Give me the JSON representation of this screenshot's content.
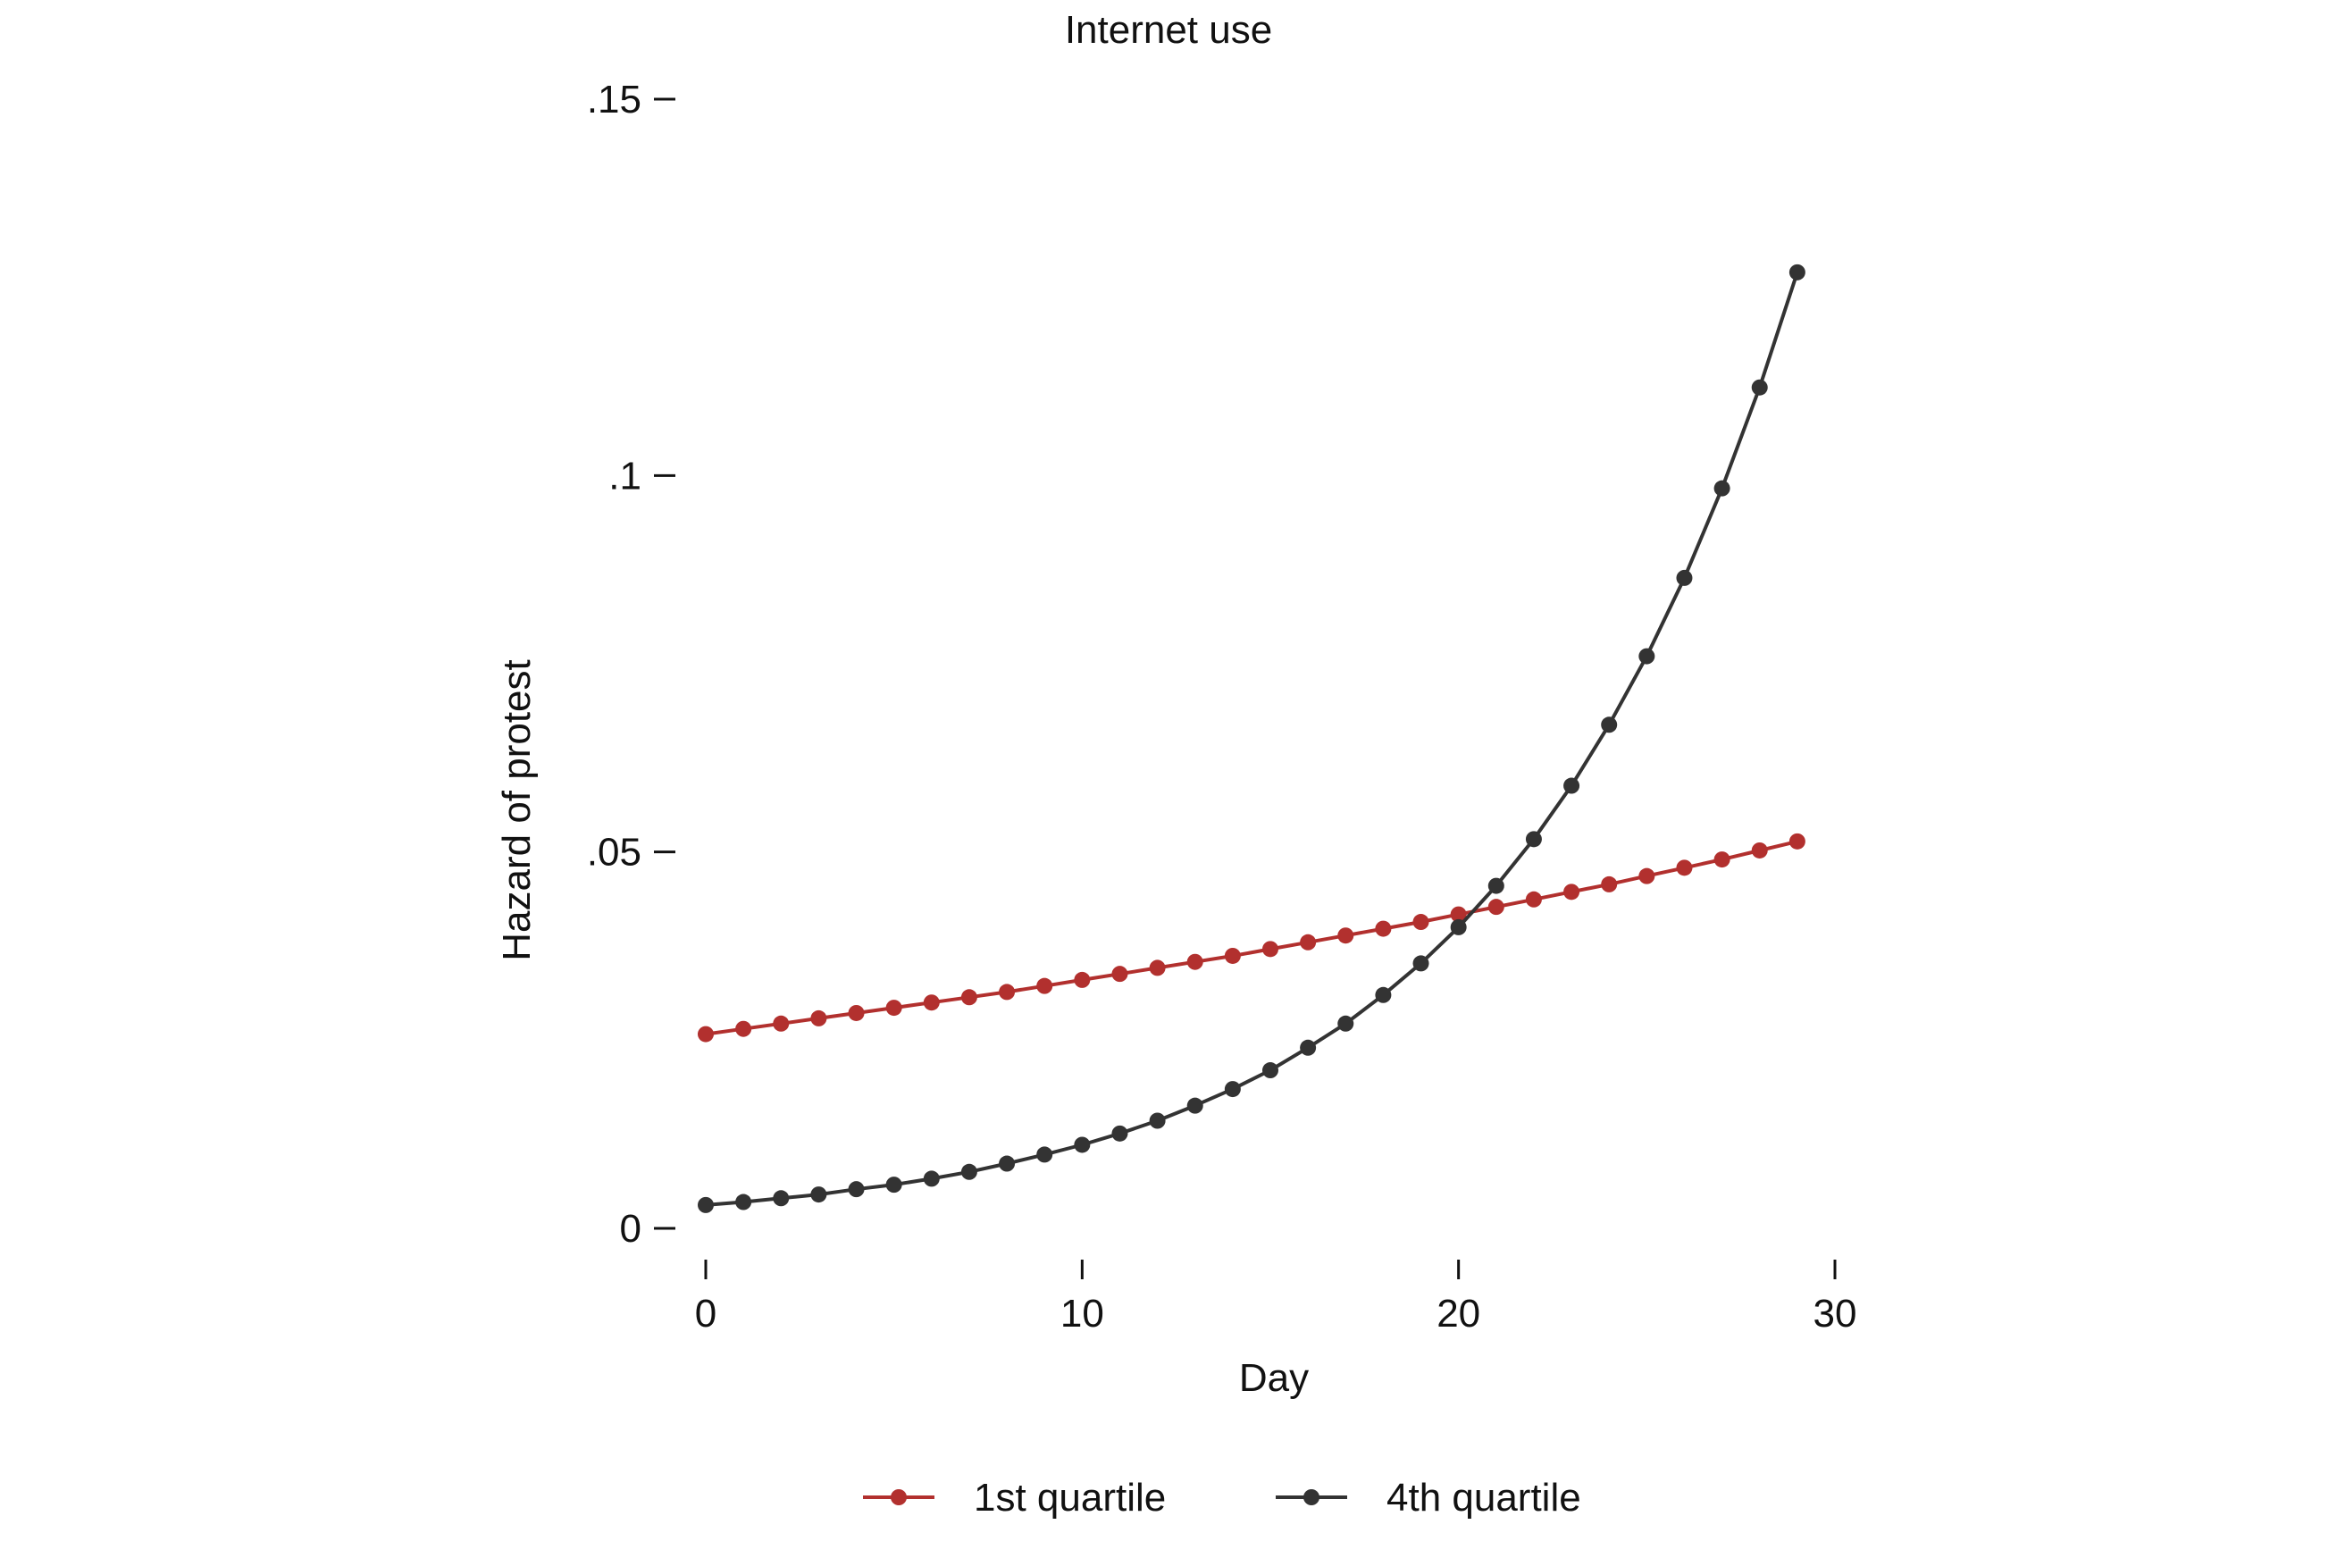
{
  "chart_data": {
    "type": "line",
    "title": "Internet use",
    "xlabel": "Day",
    "ylabel": "Hazard of protest",
    "xlim": [
      -1,
      31
    ],
    "ylim": [
      -0.004,
      0.15
    ],
    "x_ticks": [
      {
        "value": 0,
        "label": "0"
      },
      {
        "value": 10,
        "label": "10"
      },
      {
        "value": 20,
        "label": "20"
      },
      {
        "value": 30,
        "label": "30"
      }
    ],
    "y_ticks": [
      {
        "value": 0,
        "label": "0"
      },
      {
        "value": 0.05,
        "label": ".05"
      },
      {
        "value": 0.1,
        "label": ".1"
      },
      {
        "value": 0.15,
        "label": ".15"
      }
    ],
    "grid": false,
    "legend_position": "bottom",
    "x": [
      0,
      1,
      2,
      3,
      4,
      5,
      6,
      7,
      8,
      9,
      10,
      11,
      12,
      13,
      14,
      15,
      16,
      17,
      18,
      19,
      20,
      21,
      22,
      23,
      24,
      25,
      26,
      27,
      28,
      29
    ],
    "series": [
      {
        "name": "1st quartile",
        "color": "#b2302e",
        "marker": "circle",
        "values": [
          0.0258,
          0.0265,
          0.0272,
          0.0279,
          0.0286,
          0.0293,
          0.03,
          0.0307,
          0.0314,
          0.0322,
          0.033,
          0.0338,
          0.0346,
          0.0354,
          0.0362,
          0.0371,
          0.038,
          0.0389,
          0.0398,
          0.0407,
          0.0417,
          0.0427,
          0.0437,
          0.0447,
          0.0457,
          0.0468,
          0.0479,
          0.049,
          0.0502,
          0.0514
        ]
      },
      {
        "name": "4th quartile",
        "color": "#333333",
        "marker": "circle",
        "values": [
          0.0031,
          0.0035,
          0.004,
          0.0045,
          0.0052,
          0.0058,
          0.0066,
          0.0075,
          0.0086,
          0.0098,
          0.0111,
          0.0126,
          0.0143,
          0.0163,
          0.0185,
          0.021,
          0.024,
          0.0272,
          0.031,
          0.0352,
          0.04,
          0.0455,
          0.0517,
          0.0588,
          0.0669,
          0.076,
          0.0864,
          0.0983,
          0.1117,
          0.127
        ]
      }
    ]
  }
}
